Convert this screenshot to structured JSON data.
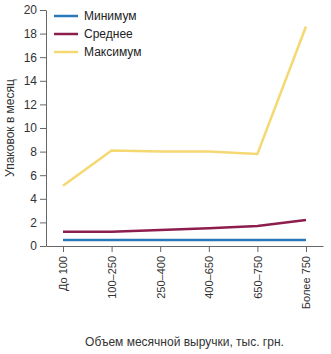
{
  "chart_data": {
    "type": "line",
    "x_label": "Объем месячной выручки, тыс. грн.",
    "y_label": "Упаковок в месяц",
    "categories": [
      "До 100",
      "100–250",
      "250–400",
      "400–650",
      "650–750",
      "Более 750"
    ],
    "series": [
      {
        "name": "Минимум",
        "color": "#2878b9",
        "values": [
          0.5,
          0.5,
          0.5,
          0.5,
          0.5,
          0.5
        ]
      },
      {
        "name": "Среднее",
        "color": "#8c1d4d",
        "values": [
          1.2,
          1.2,
          1.35,
          1.5,
          1.7,
          2.2
        ]
      },
      {
        "name": "Максимум",
        "color": "#f6d873",
        "values": [
          5.1,
          8.1,
          8.0,
          8.0,
          7.8,
          18.6
        ]
      }
    ],
    "ylim": [
      0,
      20
    ],
    "yticks": [
      0,
      2,
      4,
      6,
      8,
      10,
      12,
      14,
      16,
      18,
      20
    ],
    "grid": false,
    "legend": "upper left"
  }
}
